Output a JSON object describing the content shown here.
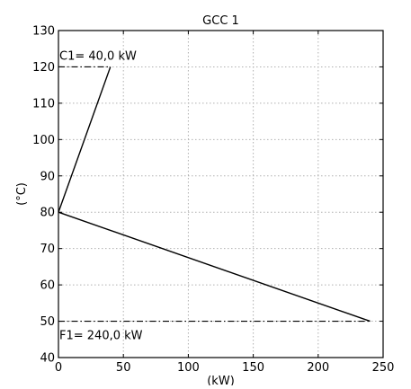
{
  "chart_data": {
    "type": "line",
    "title": "GCC 1",
    "xlabel": "(kW)",
    "ylabel": "(°C)",
    "xlim": [
      0,
      250
    ],
    "ylim": [
      40,
      130
    ],
    "xticks": [
      0,
      50,
      100,
      150,
      200,
      250
    ],
    "yticks": [
      40,
      50,
      60,
      70,
      80,
      90,
      100,
      110,
      120,
      130
    ],
    "grid": true,
    "series": [
      {
        "values": [
          [
            0,
            80
          ],
          [
            40,
            120
          ]
        ],
        "style": "solid"
      },
      {
        "values": [
          [
            0,
            80
          ],
          [
            240,
            50
          ]
        ],
        "style": "solid"
      }
    ],
    "reference_lines": [
      {
        "y": 120,
        "x_end": 40,
        "style": "dashdot"
      },
      {
        "y": 50,
        "x_end": 240,
        "style": "dashdot"
      }
    ],
    "annotations": [
      {
        "text": "C1= 40,0 kW",
        "x": 0,
        "y": 120,
        "position": "above-line"
      },
      {
        "text": "F1= 240,0 kW",
        "x": 0,
        "y": 50,
        "position": "below-line"
      }
    ],
    "colors": {
      "line": "#000000",
      "grid": "#b0b0b0",
      "background": "#ffffff"
    }
  }
}
